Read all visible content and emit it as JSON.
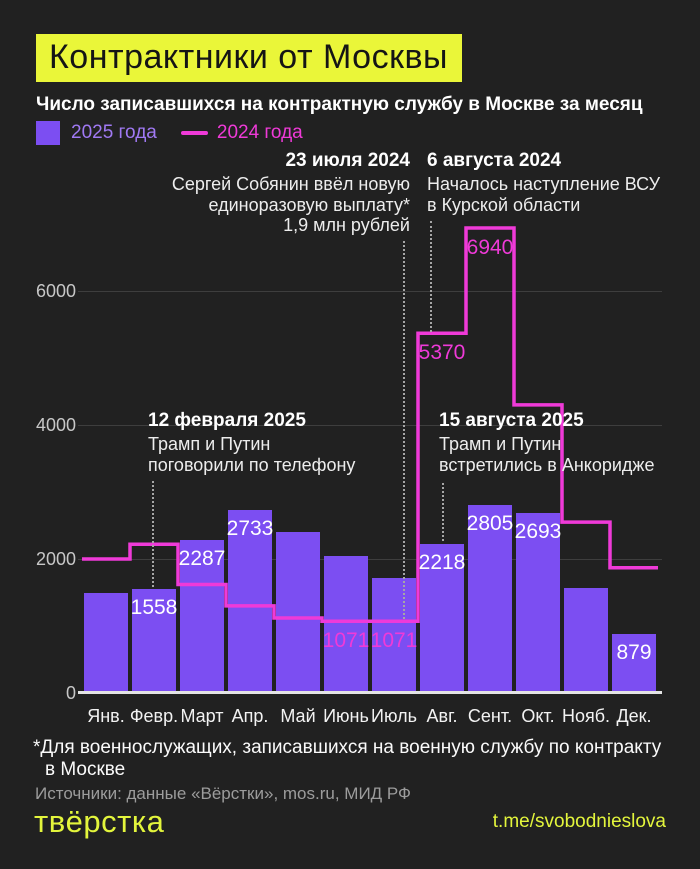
{
  "header": {
    "title": "Контрактники от Москвы",
    "subtitle": "Число записавшихся на контрактную службу в Москве за месяц"
  },
  "legend": {
    "bars_label": "2025 года",
    "line_label": "2024 года"
  },
  "colors": {
    "background": "#212121",
    "bar_2025": "#7c4ef2",
    "line_2024": "#ef3ad8",
    "accent_yellow": "#eaf639"
  },
  "chart_data": {
    "type": "bar",
    "title": "Контрактники от Москвы",
    "xlabel": "",
    "ylabel": "",
    "categories": [
      "Янв.",
      "Февр.",
      "Март",
      "Апр.",
      "Май",
      "Июнь",
      "Июль",
      "Авг.",
      "Сент.",
      "Окт.",
      "Нояб.",
      "Дек."
    ],
    "yticks": [
      0,
      2000,
      4000,
      6000
    ],
    "ylim": [
      0,
      7300
    ],
    "grid": "horizontal",
    "legend_position": "top-left",
    "series": [
      {
        "name": "2025 года",
        "type": "bar",
        "color": "#7c4ef2",
        "values": [
          1500,
          1558,
          2287,
          2733,
          2400,
          2050,
          1720,
          2218,
          2805,
          2693,
          1560,
          879
        ],
        "value_labels": [
          null,
          "1558",
          "2287",
          "2733",
          null,
          null,
          null,
          "2218",
          "2805",
          "2693",
          null,
          "879"
        ]
      },
      {
        "name": "2024 года",
        "type": "step-line",
        "color": "#ef3ad8",
        "values": [
          2000,
          2220,
          1620,
          1300,
          1120,
          1071,
          1071,
          5370,
          6940,
          4300,
          2550,
          1870
        ],
        "value_labels": [
          null,
          null,
          null,
          null,
          null,
          "1071",
          "1071",
          "5370",
          "6940",
          null,
          null,
          null
        ]
      }
    ]
  },
  "annotations": [
    {
      "date": "23 июля 2024",
      "lines": [
        "Сергей Собянин ввёл новую",
        "единоразовую выплату*",
        "1,9 млн рублей"
      ]
    },
    {
      "date": "6 августа 2024",
      "lines": [
        "Началось наступление ВСУ",
        "в Курской области"
      ]
    },
    {
      "date": "12 февраля 2025",
      "lines": [
        "Трамп и Путин",
        "поговорили по телефону"
      ]
    },
    {
      "date": "15 августа 2025",
      "lines": [
        "Трамп и Путин",
        "встретились в Анкоридже"
      ]
    }
  ],
  "footnote": {
    "line1": "*Для военнослужащих, записавшихся на военную службу по контракту",
    "line2": "в Москве"
  },
  "sources": "Источники: данные «Вёрстки», mos.ru, МИД РФ",
  "footer": {
    "logo": "твёрстка",
    "telegram": "t.me/svobodnieslova"
  }
}
